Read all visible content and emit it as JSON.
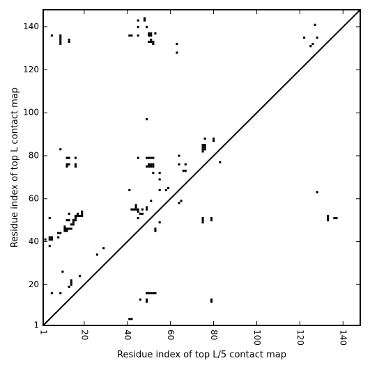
{
  "chart_data": {
    "type": "scatter",
    "xlabel": "Residue index of top L/5 contact map",
    "ylabel": "Residue index of top L contact map",
    "xlim": [
      1,
      148
    ],
    "ylim": [
      1,
      148
    ],
    "x_ticks": [
      1,
      20,
      40,
      60,
      80,
      100,
      120,
      140
    ],
    "y_ticks": [
      1,
      20,
      40,
      60,
      80,
      100,
      120,
      140
    ],
    "x_tick_labels": [
      "1",
      "20",
      "40",
      "60",
      "80",
      "100",
      "120",
      "140"
    ],
    "y_tick_labels": [
      "1",
      "20",
      "40",
      "60",
      "80",
      "100",
      "120",
      "140"
    ],
    "diagonal": true,
    "grid": false,
    "marker_color": "#000000",
    "series": [
      {
        "points": [
          [
            5,
            136
          ],
          [
            9,
            132
          ],
          [
            9,
            133
          ],
          [
            9,
            134
          ],
          [
            9,
            135
          ],
          [
            9,
            136
          ],
          [
            13,
            133
          ],
          [
            13,
            134
          ],
          [
            41,
            136
          ],
          [
            42,
            136
          ],
          [
            45,
            136
          ],
          [
            45,
            140
          ],
          [
            45,
            143
          ],
          [
            48,
            143
          ],
          [
            48,
            144
          ],
          [
            49,
            140
          ],
          [
            50,
            133
          ],
          [
            50,
            136
          ],
          [
            50,
            137
          ],
          [
            51,
            133
          ],
          [
            51,
            134
          ],
          [
            51,
            136
          ],
          [
            51,
            137
          ],
          [
            52,
            132
          ],
          [
            52,
            133
          ],
          [
            53,
            137
          ],
          [
            63,
            128
          ],
          [
            63,
            132
          ],
          [
            122,
            135
          ],
          [
            125,
            131
          ],
          [
            126,
            132
          ],
          [
            127,
            141
          ],
          [
            128,
            135
          ],
          [
            49,
            97
          ],
          [
            9,
            83
          ],
          [
            12,
            79
          ],
          [
            13,
            79
          ],
          [
            16,
            79
          ],
          [
            12,
            75
          ],
          [
            12,
            76
          ],
          [
            13,
            76
          ],
          [
            16,
            75
          ],
          [
            16,
            76
          ],
          [
            45,
            79
          ],
          [
            49,
            79
          ],
          [
            50,
            79
          ],
          [
            51,
            79
          ],
          [
            52,
            79
          ],
          [
            50,
            75
          ],
          [
            51,
            75
          ],
          [
            52,
            75
          ],
          [
            50,
            76
          ],
          [
            51,
            76
          ],
          [
            52,
            76
          ],
          [
            49,
            75
          ],
          [
            64,
            80
          ],
          [
            64,
            76
          ],
          [
            67,
            76
          ],
          [
            66,
            73
          ],
          [
            67,
            73
          ],
          [
            52,
            72
          ],
          [
            55,
            72
          ],
          [
            55,
            69
          ],
          [
            76,
            88
          ],
          [
            75,
            82
          ],
          [
            75,
            83
          ],
          [
            75,
            84
          ],
          [
            75,
            85
          ],
          [
            76,
            83
          ],
          [
            76,
            84
          ],
          [
            76,
            85
          ],
          [
            80,
            87
          ],
          [
            80,
            88
          ],
          [
            83,
            77
          ],
          [
            41,
            64
          ],
          [
            55,
            64
          ],
          [
            58,
            64
          ],
          [
            59,
            65
          ],
          [
            64,
            58
          ],
          [
            65,
            59
          ],
          [
            4,
            51
          ],
          [
            13,
            53
          ],
          [
            12,
            50
          ],
          [
            13,
            50
          ],
          [
            11,
            47
          ],
          [
            11,
            46
          ],
          [
            11,
            45
          ],
          [
            12,
            46
          ],
          [
            13,
            46
          ],
          [
            14,
            46
          ],
          [
            12,
            45
          ],
          [
            14,
            48
          ],
          [
            15,
            48
          ],
          [
            15,
            49
          ],
          [
            15,
            50
          ],
          [
            16,
            51
          ],
          [
            16,
            52
          ],
          [
            17,
            52
          ],
          [
            17,
            53
          ],
          [
            18,
            52
          ],
          [
            19,
            52
          ],
          [
            19,
            53
          ],
          [
            19,
            54
          ],
          [
            16,
            50
          ],
          [
            8,
            44
          ],
          [
            9,
            44
          ],
          [
            8,
            42
          ],
          [
            4,
            42
          ],
          [
            5,
            42
          ],
          [
            4,
            41
          ],
          [
            5,
            41
          ],
          [
            2,
            41
          ],
          [
            4,
            38
          ],
          [
            42,
            55
          ],
          [
            43,
            55
          ],
          [
            44,
            55
          ],
          [
            44,
            56
          ],
          [
            44,
            57
          ],
          [
            45,
            54
          ],
          [
            45,
            55
          ],
          [
            46,
            53
          ],
          [
            47,
            53
          ],
          [
            47,
            55
          ],
          [
            45,
            51
          ],
          [
            49,
            55
          ],
          [
            49,
            56
          ],
          [
            51,
            59
          ],
          [
            53,
            46
          ],
          [
            53,
            45
          ],
          [
            55,
            49
          ],
          [
            75,
            51
          ],
          [
            75,
            50
          ],
          [
            75,
            49
          ],
          [
            79,
            51
          ],
          [
            79,
            50
          ],
          [
            128,
            63
          ],
          [
            133,
            51
          ],
          [
            133,
            50
          ],
          [
            133,
            52
          ],
          [
            136,
            51
          ],
          [
            137,
            51
          ],
          [
            29,
            37
          ],
          [
            26,
            34
          ],
          [
            10,
            26
          ],
          [
            18,
            24
          ],
          [
            14,
            22
          ],
          [
            14,
            21
          ],
          [
            14,
            20
          ],
          [
            13,
            19
          ],
          [
            5,
            16
          ],
          [
            9,
            16
          ],
          [
            46,
            13
          ],
          [
            49,
            12
          ],
          [
            49,
            13
          ],
          [
            49,
            16
          ],
          [
            50,
            16
          ],
          [
            51,
            16
          ],
          [
            52,
            16
          ],
          [
            53,
            16
          ],
          [
            79,
            12
          ],
          [
            79,
            13
          ],
          [
            41,
            4
          ],
          [
            42,
            4
          ]
        ]
      }
    ]
  }
}
